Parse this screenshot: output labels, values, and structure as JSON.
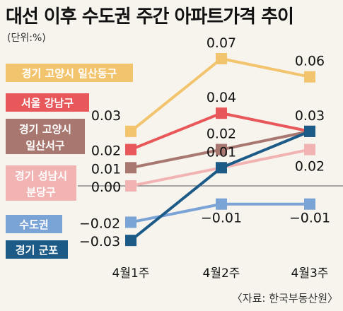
{
  "chart_data": {
    "type": "line",
    "title": "대선 이후 수도권 주간 아파트가격 추이",
    "unit": "(단위:%)",
    "source": "〈자료: 한국부동산원〉",
    "categories": [
      "4월1주",
      "4월2주",
      "4월3주"
    ],
    "ylim": [
      -0.035,
      0.075
    ],
    "grid": false,
    "legend": "left",
    "series": [
      {
        "name": "경기 고양시 일산동구",
        "values": [
          0.03,
          0.07,
          0.06
        ],
        "color": "#f2c46d",
        "labels": [
          "0.03",
          "0.07",
          "0.06"
        ]
      },
      {
        "name": "서울 강남구",
        "values": [
          0.02,
          0.04,
          0.03
        ],
        "color": "#e8585a",
        "labels": [
          "0.02",
          "0.04",
          "0.03"
        ]
      },
      {
        "name": "경기 고양시 일산서구",
        "values": [
          0.01,
          0.02,
          0.03
        ],
        "color": "#a87770",
        "labels": [
          "0.01",
          "0.02",
          ""
        ]
      },
      {
        "name": "경기 성남시 분당구",
        "values": [
          0.0,
          0.01,
          0.02
        ],
        "color": "#f2b3b3",
        "labels": [
          "0.00",
          "0.01",
          "0.02"
        ]
      },
      {
        "name": "수도권",
        "values": [
          -0.02,
          -0.01,
          -0.01
        ],
        "color": "#7aa3d6",
        "labels": [
          "−0.02",
          "−0.01",
          "−0.01"
        ]
      },
      {
        "name": "경기 군포",
        "values": [
          -0.03,
          0.01,
          0.03
        ],
        "color": "#1c5a87",
        "labels": [
          "−0.03",
          "",
          ""
        ]
      }
    ]
  }
}
